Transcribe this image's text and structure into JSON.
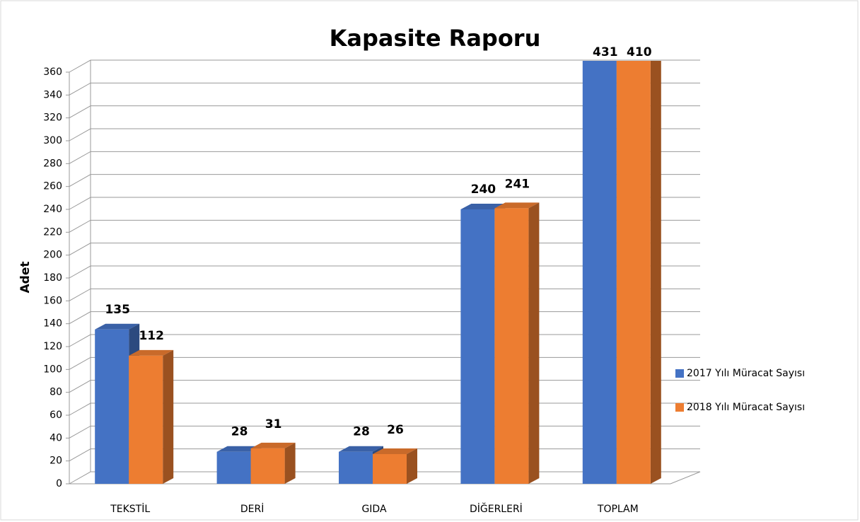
{
  "chart_data": {
    "type": "bar3d",
    "title": "Kapasite Raporu",
    "ylabel": "Adet",
    "categories": [
      "TEKSTİL",
      "DERİ",
      "GIDA",
      "DİĞERLERİ",
      "TOPLAM"
    ],
    "series": [
      {
        "name": "2017 Yılı Müracat Sayısı",
        "color": "#4472c4",
        "values": [
          135,
          28,
          28,
          240,
          431
        ]
      },
      {
        "name": "2018 Yılı Müracat Sayısı",
        "color": "#ed7d31",
        "values": [
          112,
          31,
          26,
          241,
          410
        ]
      }
    ],
    "ylim": [
      0,
      360
    ],
    "yticks": [
      0,
      20,
      40,
      60,
      80,
      100,
      120,
      140,
      160,
      180,
      200,
      220,
      240,
      260,
      280,
      300,
      320,
      340,
      360
    ],
    "grid": true,
    "legend": "right"
  }
}
